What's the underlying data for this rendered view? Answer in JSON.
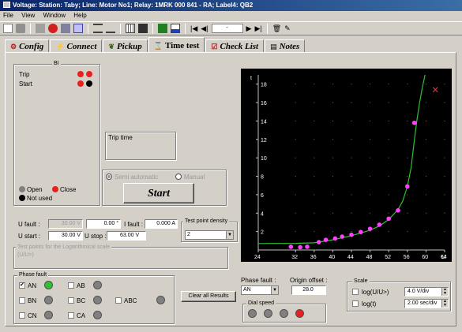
{
  "window": {
    "title": "Voltage:   Station: Taby;   Line: Motor No1;   Relay: 1MRK 000 841 - RA;   Label4: QB2"
  },
  "menu": [
    "File",
    "View",
    "Window",
    "Help"
  ],
  "toolbar": {
    "nav_value": "-"
  },
  "tabs": [
    {
      "label": "Config",
      "icon": "gear-icon"
    },
    {
      "label": "Connect",
      "icon": "plug-icon"
    },
    {
      "label": "Pickup",
      "icon": "leaf-icon"
    },
    {
      "label": "Time test",
      "icon": "hourglass-icon"
    },
    {
      "label": "Check List",
      "icon": "checklist-icon"
    },
    {
      "label": "Notes",
      "icon": "notes-icon"
    }
  ],
  "bi_group": {
    "label": "BI",
    "rows": [
      {
        "label": "Trip",
        "leds": [
          "#e82020",
          "#e82020"
        ]
      },
      {
        "label": "Start",
        "leds": [
          "#e82020",
          "#000000"
        ]
      }
    ],
    "legend": [
      {
        "label": "Open",
        "color": "#808080"
      },
      {
        "label": "Close",
        "color": "#e82020"
      },
      {
        "label": "Not used",
        "color": "#000000"
      }
    ]
  },
  "trip_time": {
    "label": "Trip time"
  },
  "mode": {
    "option_auto": "Semi automatic",
    "option_manual": "Manual",
    "start_label": "Start"
  },
  "fault_inputs": {
    "u_fault_label": "U fault :",
    "u_fault_value": "30.00 V",
    "angle_value": "0.00 °",
    "i_fault_label": "I fault :",
    "i_fault_value": "0.000 A",
    "u_start_label": "U start :",
    "u_start_value": "30.00 V",
    "u_stop_label": "U stop :",
    "u_stop_value": "63.00 V"
  },
  "density": {
    "label": "Test point density",
    "value": "2"
  },
  "test_points_note": {
    "line1": "Test points for the Logarithmical scale",
    "line2": "(U/U>)"
  },
  "phase_fault": {
    "label": "Phase fault",
    "items": [
      {
        "label": "AN",
        "checked": true,
        "led": "#30c030"
      },
      {
        "label": "AB",
        "checked": false,
        "led": "#808080"
      },
      {
        "label": "BN",
        "checked": false,
        "led": "#808080"
      },
      {
        "label": "BC",
        "checked": false,
        "led": "#808080"
      },
      {
        "label": "ABC",
        "checked": false,
        "led": "#808080"
      },
      {
        "label": "CN",
        "checked": false,
        "led": "#808080"
      },
      {
        "label": "CA",
        "checked": false,
        "led": "#808080"
      }
    ]
  },
  "clear_button": "Clear all Results",
  "bottom": {
    "phase_fault_label": "Phase fault :",
    "phase_fault_value": "AN",
    "origin_offset_label": "Origin offset :",
    "origin_offset_value": "28.0",
    "dial_speed_label": "Dial speed",
    "dial_leds": [
      "#808080",
      "#808080",
      "#808080",
      "#e82020"
    ]
  },
  "scale": {
    "label": "Scale",
    "log_u_label": "log(U/U>)",
    "log_u_value": "4.0 V/div",
    "log_t_label": "log(t)",
    "log_t_value": "2.00 sec/div"
  },
  "chart_data": {
    "type": "scatter",
    "xlabel": "U",
    "ylabel": "t",
    "xlim": [
      24,
      64
    ],
    "ylim": [
      0,
      19
    ],
    "x_ticks": [
      24,
      32,
      36,
      40,
      44,
      48,
      52,
      56,
      60,
      64
    ],
    "y_ticks": [
      2,
      4,
      6,
      8,
      10,
      12,
      14,
      16,
      18
    ],
    "grid": true,
    "points": [
      {
        "x": 31.0,
        "y": 0.35
      },
      {
        "x": 33.0,
        "y": 0.3
      },
      {
        "x": 34.5,
        "y": 0.35
      },
      {
        "x": 37.0,
        "y": 0.85
      },
      {
        "x": 38.5,
        "y": 1.1
      },
      {
        "x": 40.5,
        "y": 1.25
      },
      {
        "x": 42.0,
        "y": 1.45
      },
      {
        "x": 44.0,
        "y": 1.65
      },
      {
        "x": 46.0,
        "y": 1.95
      },
      {
        "x": 48.0,
        "y": 2.3
      },
      {
        "x": 50.0,
        "y": 2.75
      },
      {
        "x": 52.0,
        "y": 3.4
      },
      {
        "x": 54.0,
        "y": 4.3
      },
      {
        "x": 56.0,
        "y": 6.9
      },
      {
        "x": 57.5,
        "y": 13.8
      }
    ],
    "curve_x": [
      24,
      32,
      36,
      40,
      44,
      48,
      50,
      52,
      54,
      55,
      56,
      56.8,
      57.4,
      58.0,
      58.6,
      59.2,
      59.8
    ],
    "curve_y": [
      0.7,
      0.72,
      0.78,
      1.1,
      1.55,
      2.15,
      2.6,
      3.3,
      4.4,
      5.3,
      6.9,
      8.9,
      11.5,
      13.9,
      15.9,
      17.6,
      19.0
    ],
    "marker_color": "#ff40ff",
    "curve_color": "#30c030",
    "extra_mark": {
      "x": 62.0,
      "y": 17.4,
      "color": "#c04040"
    }
  }
}
